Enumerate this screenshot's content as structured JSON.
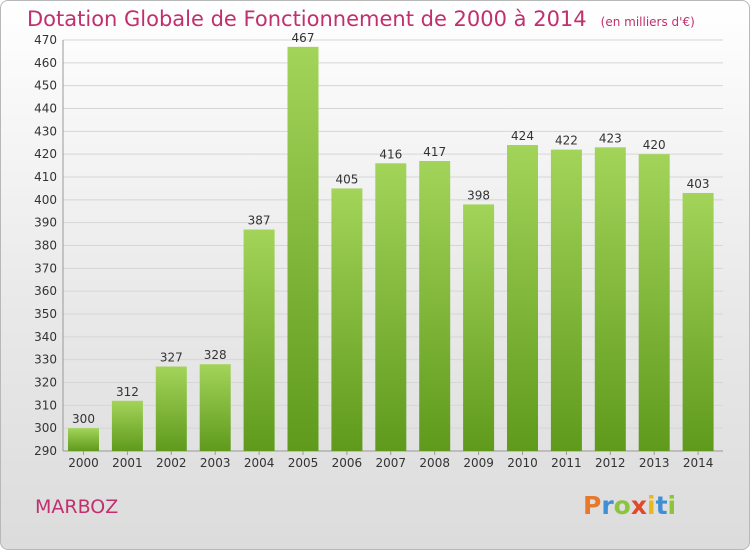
{
  "header": {
    "title": "Dotation Globale de Fonctionnement de 2000 à 2014",
    "subtitle": "(en milliers d'€)"
  },
  "footer": {
    "commune": "MARBOZ",
    "logo": {
      "letters": [
        "P",
        "r",
        "o",
        "x",
        "i",
        "t",
        "i"
      ],
      "colors": [
        "#e8792b",
        "#3f8fd6",
        "#8cc43c",
        "#e04a2a",
        "#e8b820",
        "#3f8fd6",
        "#8cc43c"
      ]
    }
  },
  "colors": {
    "bar_top": "#a3d45a",
    "bar_bottom": "#5f9a1c",
    "title": "#c0306e",
    "axis_text": "#333333",
    "grid": "#d6d6d6"
  },
  "chart_data": {
    "type": "bar",
    "title": "Dotation Globale de Fonctionnement de 2000 à 2014",
    "subtitle": "(en milliers d'€)",
    "xlabel": "",
    "ylabel": "",
    "categories": [
      "2000",
      "2001",
      "2002",
      "2003",
      "2004",
      "2005",
      "2006",
      "2007",
      "2008",
      "2009",
      "2010",
      "2011",
      "2012",
      "2013",
      "2014"
    ],
    "values": [
      300,
      312,
      327,
      328,
      387,
      467,
      405,
      416,
      417,
      398,
      424,
      422,
      423,
      420,
      403
    ],
    "data_labels": [
      "300",
      "312",
      "327",
      "328",
      "387",
      "467",
      "405",
      "416",
      "417",
      "398",
      "424",
      "422",
      "423",
      "420",
      "403"
    ],
    "yticks": [
      290,
      300,
      310,
      320,
      330,
      340,
      350,
      360,
      370,
      380,
      390,
      400,
      410,
      420,
      430,
      440,
      450,
      460,
      470
    ],
    "ytick_labels": [
      "290",
      "300",
      "310",
      "320",
      "330",
      "340",
      "350",
      "360",
      "370",
      "380",
      "390",
      "400",
      "410",
      "420",
      "430",
      "440",
      "450",
      "460",
      "470"
    ],
    "ylim": [
      290,
      470
    ],
    "grid": true,
    "legend": "none"
  }
}
